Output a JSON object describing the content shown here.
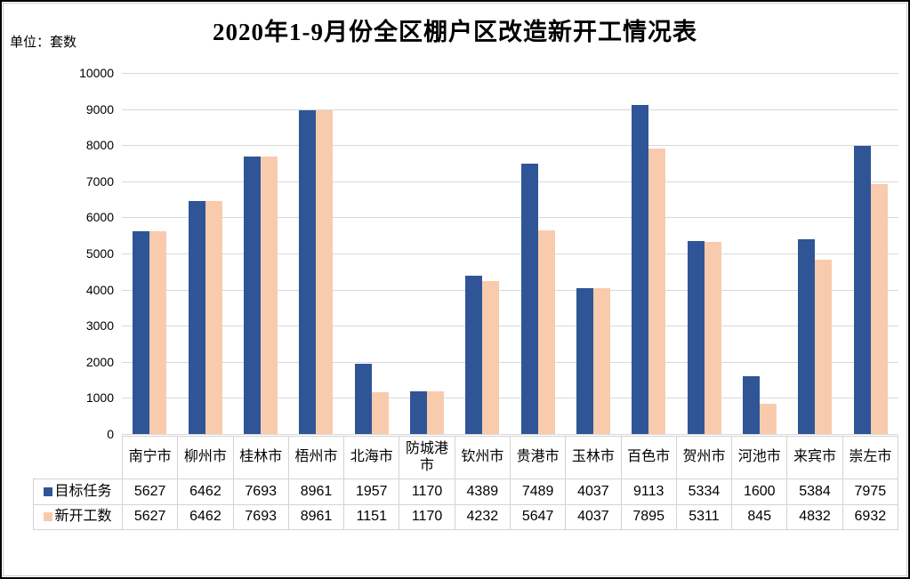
{
  "chart_data": {
    "type": "bar",
    "title": "2020年1-9月份全区棚户区改造新开工情况表",
    "unit_label": "单位：套数",
    "categories": [
      "南宁市",
      "柳州市",
      "桂林市",
      "梧州市",
      "北海市",
      "防城港市",
      "钦州市",
      "贵港市",
      "玉林市",
      "百色市",
      "贺州市",
      "河池市",
      "来宾市",
      "崇左市"
    ],
    "series": [
      {
        "name": "目标任务",
        "color": "#2F5597",
        "values": [
          5627,
          6462,
          7693,
          8961,
          1957,
          1170,
          4389,
          7489,
          4037,
          9113,
          5334,
          1600,
          5384,
          7975
        ]
      },
      {
        "name": "新开工数",
        "color": "#F8CBAD",
        "values": [
          5627,
          6462,
          7693,
          8961,
          1151,
          1170,
          4232,
          5647,
          4037,
          7895,
          5311,
          845,
          4832,
          6932
        ]
      }
    ],
    "ylim": [
      0,
      10000
    ],
    "ytick_step": 1000,
    "yticks": [
      10000,
      9000,
      8000,
      7000,
      6000,
      5000,
      4000,
      3000,
      2000,
      1000,
      0
    ],
    "grid": true,
    "legend_position": "data-table-left",
    "colors": {
      "gridline": "#D9D9D9",
      "table_border": "#D3D3D3",
      "chart_border": "#CBCBCB",
      "text": "#000000"
    }
  }
}
